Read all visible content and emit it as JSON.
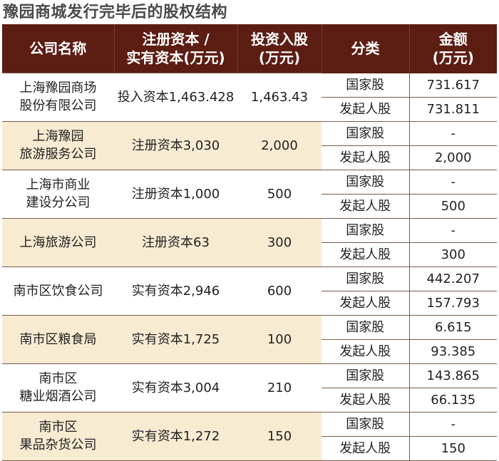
{
  "title": "豫园商城发行完毕后的股权结构",
  "headers": {
    "company": "公司名称",
    "capital": "注册资本 /\n实有资本(万元)",
    "invest": "投资入股\n(万元)",
    "category": "分类",
    "amount": "金额\n(万元)"
  },
  "rows": [
    {
      "company": "上海豫园商场\n股份有限公司",
      "capital": "投入资本1,463.428",
      "invest": "1,463.43",
      "sub": [
        {
          "type": "国家股",
          "amount": "731.617"
        },
        {
          "type": "发起人股",
          "amount": "731.811"
        }
      ]
    },
    {
      "company": "上海豫园\n旅游服务公司",
      "capital": "注册资本3,030",
      "invest": "2,000",
      "sub": [
        {
          "type": "国家股",
          "amount": "-"
        },
        {
          "type": "发起人股",
          "amount": "2,000"
        }
      ]
    },
    {
      "company": "上海市商业\n建设分公司",
      "capital": "注册资本1,000",
      "invest": "500",
      "sub": [
        {
          "type": "国家股",
          "amount": "-"
        },
        {
          "type": "发起人股",
          "amount": "500"
        }
      ]
    },
    {
      "company": "上海旅游公司",
      "capital": "注册资本63",
      "invest": "300",
      "sub": [
        {
          "type": "国家股",
          "amount": "-"
        },
        {
          "type": "发起人股",
          "amount": "300"
        }
      ]
    },
    {
      "company": "南市区饮食公司",
      "capital": "实有资本2,946",
      "invest": "600",
      "sub": [
        {
          "type": "国家股",
          "amount": "442.207"
        },
        {
          "type": "发起人股",
          "amount": "157.793"
        }
      ]
    },
    {
      "company": "南市区粮食局",
      "capital": "实有资本1,725",
      "invest": "100",
      "sub": [
        {
          "type": "国家股",
          "amount": "6.615"
        },
        {
          "type": "发起人股",
          "amount": "93.385"
        }
      ]
    },
    {
      "company": "南市区\n糖业烟酒公司",
      "capital": "实有资本3,004",
      "invest": "210",
      "sub": [
        {
          "type": "国家股",
          "amount": "143.865"
        },
        {
          "type": "发起人股",
          "amount": "66.135"
        }
      ]
    },
    {
      "company": "南市区\n果品杂货公司",
      "capital": "实有资本1,272",
      "invest": "150",
      "sub": [
        {
          "type": "国家股",
          "amount": "-"
        },
        {
          "type": "发起人股",
          "amount": "150"
        }
      ]
    }
  ]
}
